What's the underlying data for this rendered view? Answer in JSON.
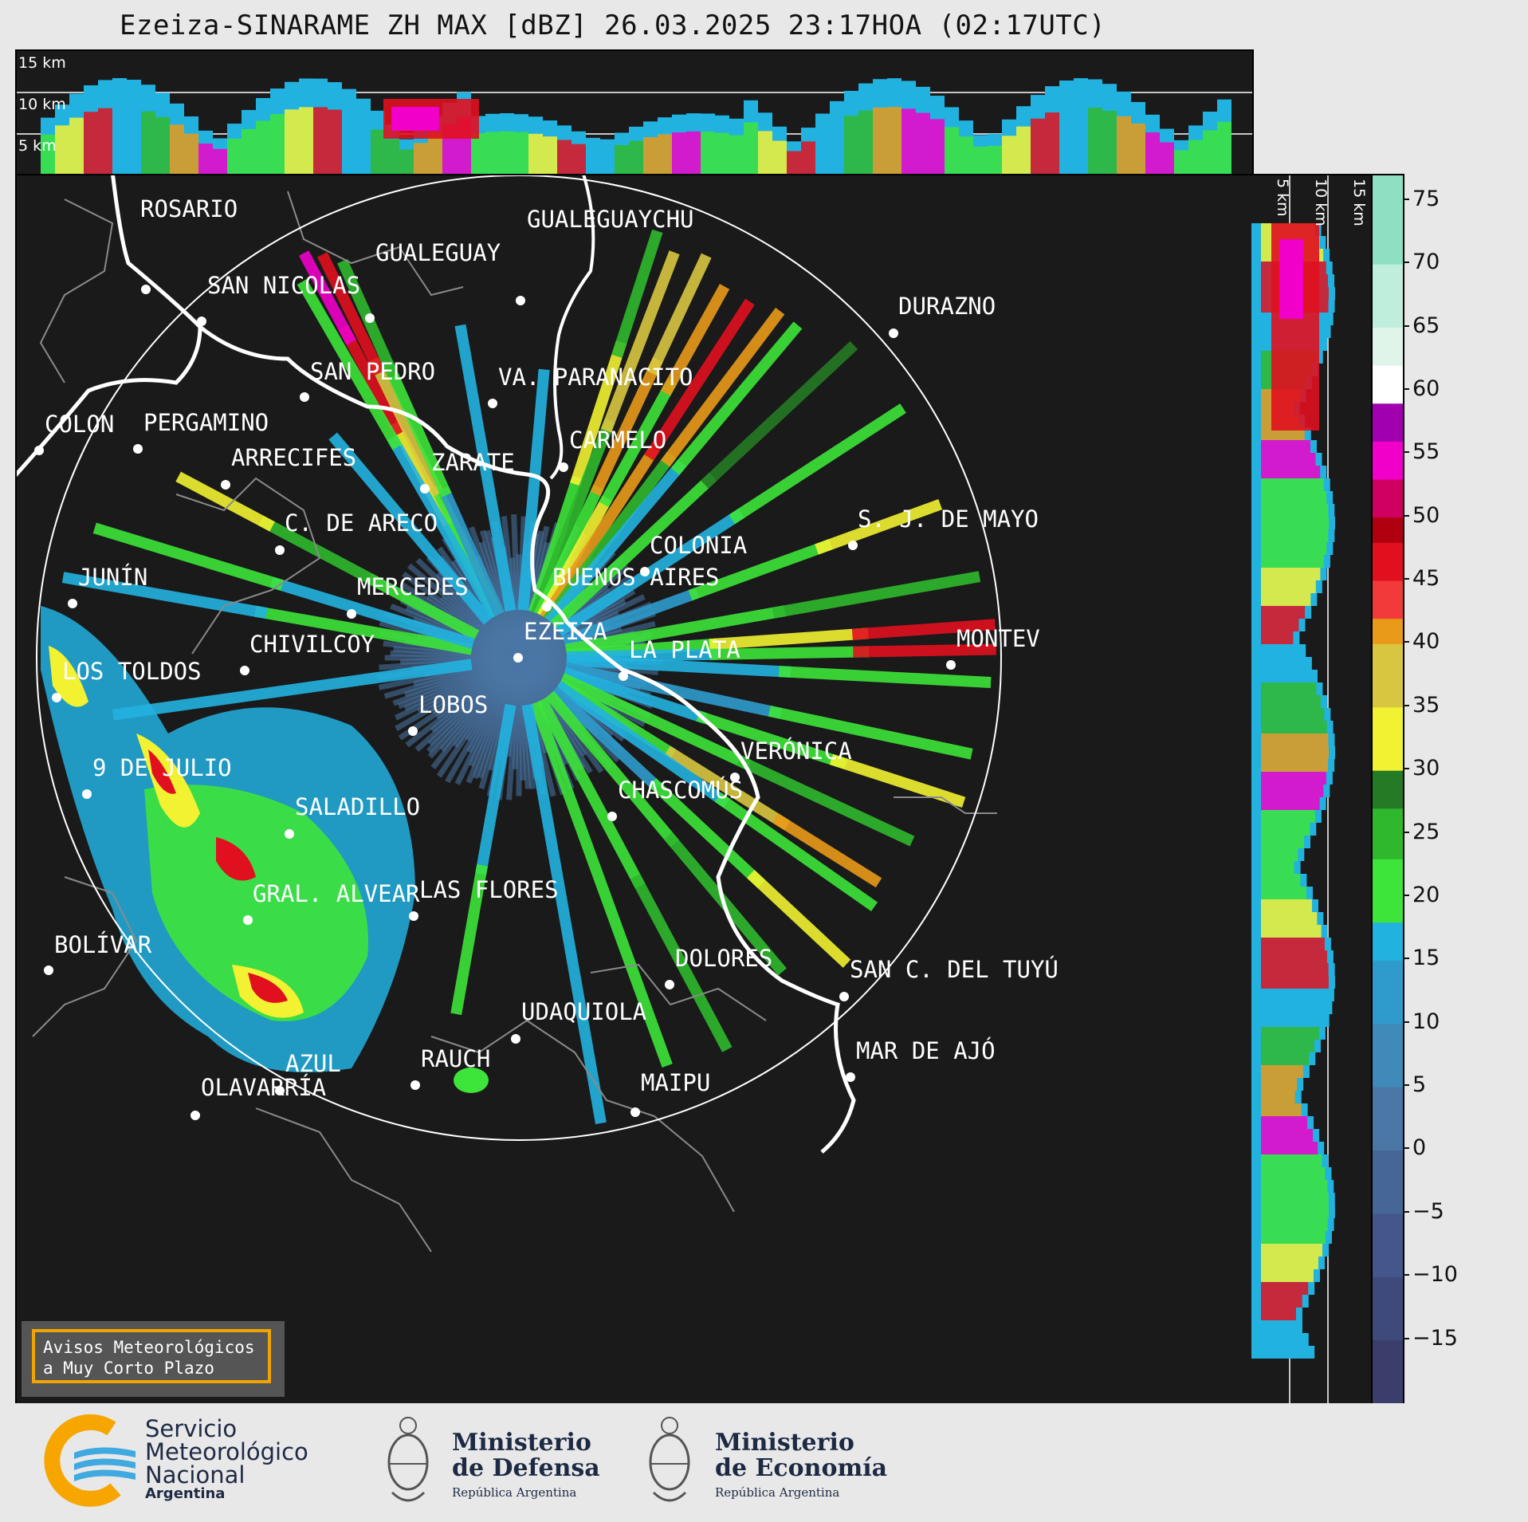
{
  "title": "Ezeiza-SINARAME ZH MAX [dBZ] 26.03.2025 23:17HOA (02:17UTC)",
  "height_labels_top": [
    "15 km",
    "10 km",
    "5 km"
  ],
  "height_labels_side": [
    "5 km",
    "10 km",
    "15 km"
  ],
  "colorbar": {
    "ticks": [
      "75",
      "70",
      "65",
      "60",
      "55",
      "50",
      "45",
      "40",
      "35",
      "30",
      "25",
      "20",
      "15",
      "10",
      "5",
      "0",
      "−5",
      "−10",
      "−15"
    ],
    "range": [
      -20,
      77
    ],
    "stops": [
      {
        "from": -20,
        "color": "#3b3d6b"
      },
      {
        "from": -15,
        "color": "#3f4a7c"
      },
      {
        "from": -10,
        "color": "#43578c"
      },
      {
        "from": -5,
        "color": "#466698"
      },
      {
        "from": 0,
        "color": "#4a77a6"
      },
      {
        "from": 5,
        "color": "#3f8ab9"
      },
      {
        "from": 10,
        "color": "#2f9bcc"
      },
      {
        "from": 15,
        "color": "#22b2e0"
      },
      {
        "from": 18,
        "color": "#3de43a"
      },
      {
        "from": 23,
        "color": "#2fb82e"
      },
      {
        "from": 27,
        "color": "#257a25"
      },
      {
        "from": 30,
        "color": "#f2f232"
      },
      {
        "from": 35,
        "color": "#d9c640"
      },
      {
        "from": 40,
        "color": "#e89a18"
      },
      {
        "from": 42,
        "color": "#f23a3a"
      },
      {
        "from": 45,
        "color": "#e0101f"
      },
      {
        "from": 48,
        "color": "#b00010"
      },
      {
        "from": 50,
        "color": "#d00060"
      },
      {
        "from": 53,
        "color": "#f000c8"
      },
      {
        "from": 56,
        "color": "#a000b0"
      },
      {
        "from": 59,
        "color": "#ffffff"
      },
      {
        "from": 62,
        "color": "#dff5ea"
      },
      {
        "from": 65,
        "color": "#bfeedd"
      },
      {
        "from": 70,
        "color": "#8fe0c2"
      }
    ]
  },
  "cities": [
    {
      "name": "ROSARIO"
    },
    {
      "name": "GUALEGUAYCHU"
    },
    {
      "name": "GUALEGUAY"
    },
    {
      "name": "SAN NICOLAS"
    },
    {
      "name": "DURAZNO"
    },
    {
      "name": "SAN PEDRO"
    },
    {
      "name": "VA. PARANACITO"
    },
    {
      "name": "COLON"
    },
    {
      "name": "PERGAMINO"
    },
    {
      "name": "CARMELO"
    },
    {
      "name": "ARRECIFES"
    },
    {
      "name": "ZÁRATE"
    },
    {
      "name": "S. J. DE MAYO"
    },
    {
      "name": "C. DE ARECO"
    },
    {
      "name": "COLONIA"
    },
    {
      "name": "JUNÍN"
    },
    {
      "name": "BUENOS AIRES"
    },
    {
      "name": "MERCEDES"
    },
    {
      "name": "EZEIZA"
    },
    {
      "name": "MONTEV"
    },
    {
      "name": "CHIVILCOY"
    },
    {
      "name": "LA PLATA"
    },
    {
      "name": "LOS TOLDOS"
    },
    {
      "name": "LOBOS"
    },
    {
      "name": "VERÓNICA"
    },
    {
      "name": "9 DE JULIO"
    },
    {
      "name": "CHASCOMÚS"
    },
    {
      "name": "SALADILLO"
    },
    {
      "name": "GRAL. ALVEAR"
    },
    {
      "name": "LAS FLORES"
    },
    {
      "name": "BOLÍVAR"
    },
    {
      "name": "DOLORES"
    },
    {
      "name": "SAN C. DEL TUYÚ"
    },
    {
      "name": "UDAQUIOLA"
    },
    {
      "name": "MAR DE AJÓ"
    },
    {
      "name": "RAUCH"
    },
    {
      "name": "AZUL"
    },
    {
      "name": "OLAVARRÍA"
    },
    {
      "name": "MAIPU"
    }
  ],
  "warning_box": {
    "line1": "Avisos Meteorológicos",
    "line2": "a Muy Corto Plazo"
  },
  "footer": {
    "smn": {
      "line1": "Servicio",
      "line2": "Meteorológico",
      "line3": "Nacional",
      "line4": "Argentina"
    },
    "defensa": {
      "line1": "Ministerio",
      "line2": "de Defensa",
      "sub": "República Argentina"
    },
    "economia": {
      "line1": "Ministerio",
      "line2": "de Economía",
      "sub": "República Argentina"
    }
  },
  "colors": {
    "background": "#1a1a1a",
    "border_accent": "#f0a400",
    "smn_orange": "#f7a600",
    "smn_blue": "#3fa9e0"
  }
}
